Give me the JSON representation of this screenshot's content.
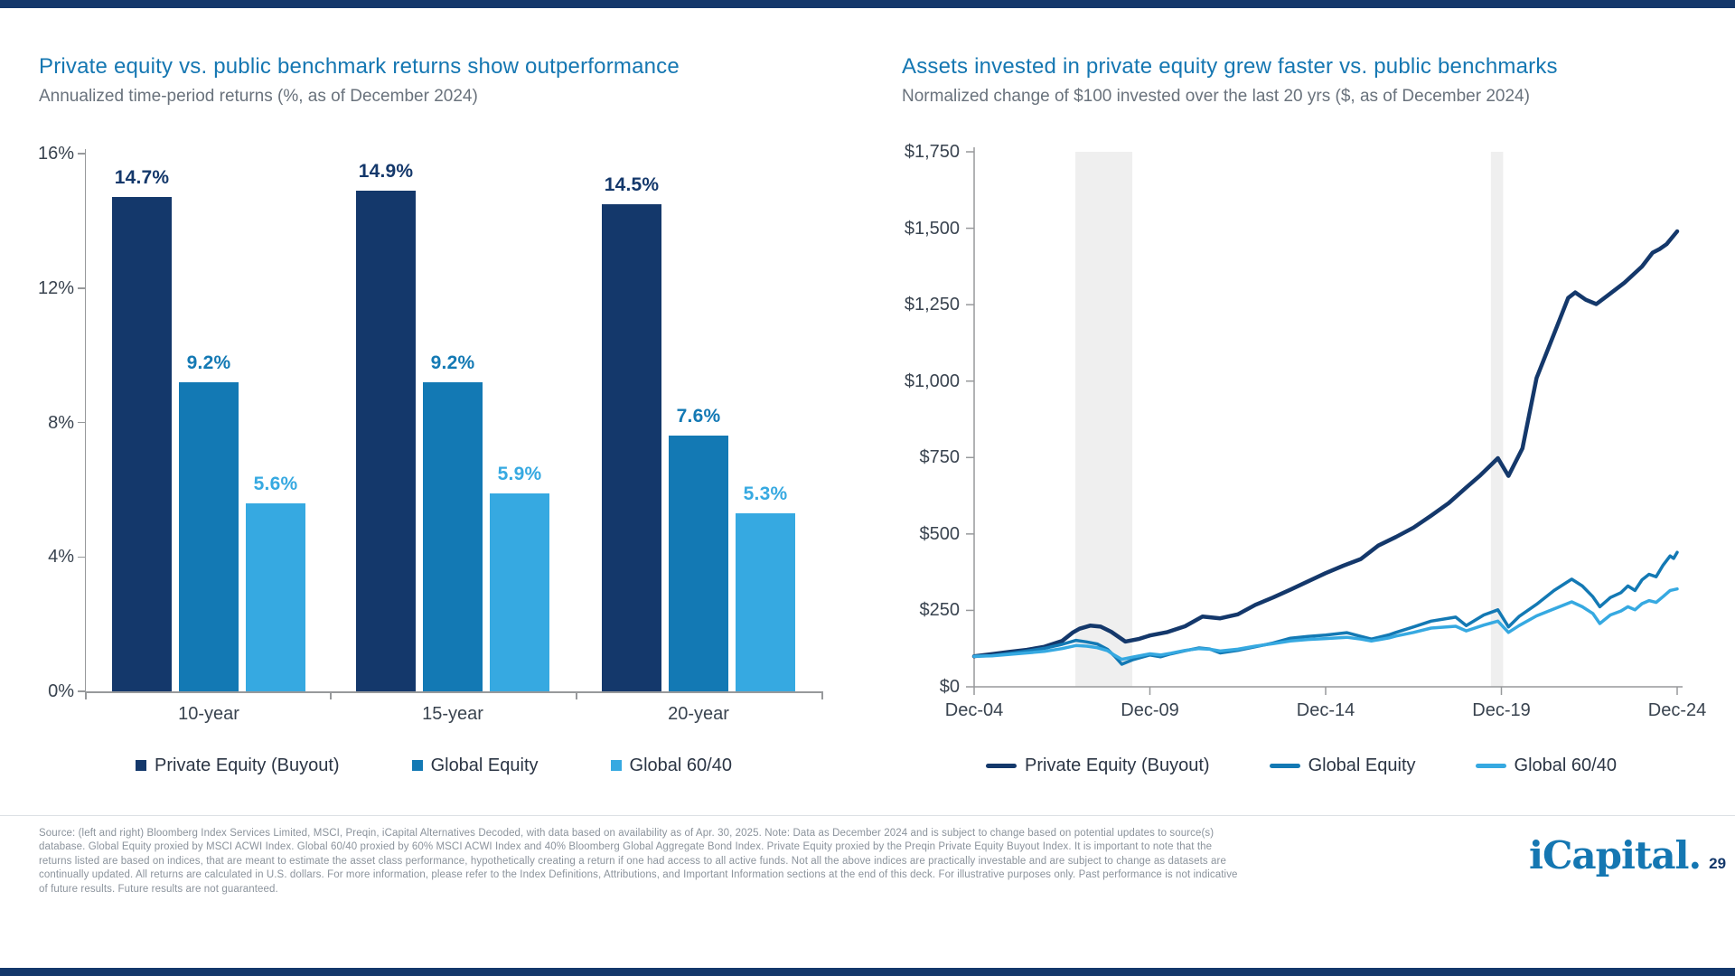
{
  "brand": {
    "navy": "#14386B",
    "blue": "#1577B2",
    "light_blue": "#36A9E1",
    "axis_text": "#39434F",
    "subtitle_gray": "#69727C",
    "footnote_gray": "#8B939C",
    "band_gray": "#EFEFEF"
  },
  "chart_data": [
    {
      "type": "bar",
      "title": "Private equity vs. public benchmark returns show outperformance",
      "subtitle": "Annualized time-period returns (%, as of December 2024)",
      "categories": [
        "10-year",
        "15-year",
        "20-year"
      ],
      "series": [
        {
          "name": "Private Equity (Buyout)",
          "color": "#14386B",
          "values": [
            14.7,
            14.9,
            14.5
          ]
        },
        {
          "name": "Global Equity",
          "color": "#1379B4",
          "values": [
            9.2,
            9.2,
            7.6
          ]
        },
        {
          "name": "Global 60/40",
          "color": "#36A9E1",
          "values": [
            5.6,
            5.9,
            5.3
          ]
        }
      ],
      "value_label_suffix": "%",
      "ylim": [
        0,
        16
      ],
      "y_ticks": [
        "0%",
        "4%",
        "8%",
        "12%",
        "16%"
      ],
      "grid": false,
      "legend_position": "bottom"
    },
    {
      "type": "line",
      "title": "Assets invested in private equity grew faster vs. public benchmarks",
      "subtitle": "Normalized change of $100 invested over the last 20 yrs ($, as of December 2024)",
      "x_ticks": [
        "Dec-04",
        "Dec-09",
        "Dec-14",
        "Dec-19",
        "Dec-24"
      ],
      "x_range_years": [
        0,
        20
      ],
      "ylim": [
        0,
        1750
      ],
      "y_ticks": [
        "$0",
        "$250",
        "$500",
        "$750",
        "$1,000",
        "$1,250",
        "$1,500",
        "$1,750"
      ],
      "grid": false,
      "legend_position": "bottom",
      "shaded_bands": [
        {
          "name": "2008-09 recession",
          "x_years": [
            2.88,
            4.5
          ]
        },
        {
          "name": "2020 recession",
          "x_years": [
            14.7,
            15.05
          ]
        }
      ],
      "series": [
        {
          "name": "Private Equity (Buyout)",
          "color": "#14386B",
          "points": [
            [
              0,
              100
            ],
            [
              0.5,
              107
            ],
            [
              1,
              114
            ],
            [
              1.5,
              121
            ],
            [
              2,
              131
            ],
            [
              2.5,
              150
            ],
            [
              2.8,
              177
            ],
            [
              3,
              190
            ],
            [
              3.3,
              200
            ],
            [
              3.6,
              197
            ],
            [
              3.9,
              180
            ],
            [
              4.3,
              148
            ],
            [
              4.7,
              157
            ],
            [
              5,
              168
            ],
            [
              5.5,
              179
            ],
            [
              6,
              198
            ],
            [
              6.5,
              230
            ],
            [
              7,
              224
            ],
            [
              7.5,
              237
            ],
            [
              8,
              268
            ],
            [
              8.5,
              292
            ],
            [
              9,
              318
            ],
            [
              9.5,
              345
            ],
            [
              10,
              372
            ],
            [
              10.5,
              396
            ],
            [
              11,
              418
            ],
            [
              11.5,
              462
            ],
            [
              12,
              490
            ],
            [
              12.5,
              521
            ],
            [
              13,
              560
            ],
            [
              13.5,
              601
            ],
            [
              14,
              652
            ],
            [
              14.4,
              692
            ],
            [
              14.9,
              748
            ],
            [
              15.2,
              690
            ],
            [
              15.6,
              780
            ],
            [
              16,
              1010
            ],
            [
              16.5,
              1155
            ],
            [
              16.9,
              1272
            ],
            [
              17.1,
              1290
            ],
            [
              17.4,
              1266
            ],
            [
              17.7,
              1252
            ],
            [
              18,
              1278
            ],
            [
              18.5,
              1322
            ],
            [
              19,
              1375
            ],
            [
              19.3,
              1420
            ],
            [
              19.5,
              1432
            ],
            [
              19.7,
              1448
            ],
            [
              20,
              1490
            ]
          ]
        },
        {
          "name": "Global Equity",
          "color": "#1379B4",
          "points": [
            [
              0,
              100
            ],
            [
              0.5,
              102
            ],
            [
              1,
              109
            ],
            [
              1.5,
              117
            ],
            [
              2,
              126
            ],
            [
              2.5,
              139
            ],
            [
              2.9,
              152
            ],
            [
              3.2,
              147
            ],
            [
              3.5,
              140
            ],
            [
              3.8,
              122
            ],
            [
              4,
              100
            ],
            [
              4.2,
              74
            ],
            [
              4.5,
              88
            ],
            [
              5,
              104
            ],
            [
              5.3,
              98
            ],
            [
              5.6,
              108
            ],
            [
              6,
              118
            ],
            [
              6.4,
              127
            ],
            [
              6.7,
              124
            ],
            [
              7,
              111
            ],
            [
              7.5,
              119
            ],
            [
              8,
              131
            ],
            [
              8.5,
              143
            ],
            [
              9,
              159
            ],
            [
              9.5,
              165
            ],
            [
              10,
              169
            ],
            [
              10.6,
              177
            ],
            [
              11,
              165
            ],
            [
              11.3,
              156
            ],
            [
              11.8,
              170
            ],
            [
              12,
              178
            ],
            [
              12.5,
              196
            ],
            [
              13,
              215
            ],
            [
              13.7,
              228
            ],
            [
              14,
              200
            ],
            [
              14.5,
              235
            ],
            [
              14.9,
              252
            ],
            [
              15.2,
              196
            ],
            [
              15.5,
              230
            ],
            [
              16,
              270
            ],
            [
              16.5,
              315
            ],
            [
              17,
              352
            ],
            [
              17.3,
              330
            ],
            [
              17.6,
              295
            ],
            [
              17.8,
              262
            ],
            [
              18.1,
              292
            ],
            [
              18.4,
              308
            ],
            [
              18.6,
              330
            ],
            [
              18.8,
              315
            ],
            [
              19,
              350
            ],
            [
              19.2,
              368
            ],
            [
              19.4,
              360
            ],
            [
              19.6,
              398
            ],
            [
              19.8,
              428
            ],
            [
              19.9,
              420
            ],
            [
              20,
              440
            ]
          ]
        },
        {
          "name": "Global 60/40",
          "color": "#36A9E1",
          "points": [
            [
              0,
              100
            ],
            [
              0.5,
              101
            ],
            [
              1,
              106
            ],
            [
              1.5,
              111
            ],
            [
              2,
              116
            ],
            [
              2.5,
              125
            ],
            [
              2.9,
              135
            ],
            [
              3.2,
              133
            ],
            [
              3.5,
              128
            ],
            [
              3.8,
              118
            ],
            [
              4,
              103
            ],
            [
              4.2,
              90
            ],
            [
              4.5,
              97
            ],
            [
              5,
              108
            ],
            [
              5.3,
              104
            ],
            [
              5.6,
              110
            ],
            [
              6,
              119
            ],
            [
              6.4,
              125
            ],
            [
              6.7,
              123
            ],
            [
              7,
              117
            ],
            [
              7.5,
              123
            ],
            [
              8,
              133
            ],
            [
              8.5,
              141
            ],
            [
              9,
              150
            ],
            [
              9.5,
              155
            ],
            [
              10,
              158
            ],
            [
              10.6,
              162
            ],
            [
              11,
              156
            ],
            [
              11.3,
              150
            ],
            [
              11.8,
              160
            ],
            [
              12,
              166
            ],
            [
              12.5,
              178
            ],
            [
              13,
              192
            ],
            [
              13.7,
              198
            ],
            [
              14,
              183
            ],
            [
              14.5,
              202
            ],
            [
              14.9,
              215
            ],
            [
              15.2,
              178
            ],
            [
              15.5,
              200
            ],
            [
              16,
              232
            ],
            [
              16.5,
              255
            ],
            [
              17,
              278
            ],
            [
              17.3,
              262
            ],
            [
              17.6,
              240
            ],
            [
              17.8,
              207
            ],
            [
              18.1,
              235
            ],
            [
              18.4,
              248
            ],
            [
              18.6,
              262
            ],
            [
              18.8,
              252
            ],
            [
              19,
              272
            ],
            [
              19.2,
              282
            ],
            [
              19.4,
              276
            ],
            [
              19.6,
              295
            ],
            [
              19.8,
              315
            ],
            [
              20,
              320
            ]
          ]
        }
      ]
    }
  ],
  "footer": {
    "source_text": "Source: (left and right) Bloomberg Index Services Limited, MSCI, Preqin, iCapital Alternatives Decoded, with data based on availability as of Apr. 30, 2025. Note: Data as December 2024 and is subject to change based on potential updates to source(s) database. Global Equity proxied by MSCI ACWI Index. Global 60/40 proxied by 60% MSCI ACWI Index and 40% Bloomberg Global Aggregate Bond Index. Private Equity proxied by the Preqin Private Equity Buyout Index. It is important to note that the returns listed are based on indices, that are meant to estimate the asset class performance, hypothetically creating a return if one had access to all active funds. Not all the above indices are practically investable and are subject to change as datasets are continually updated. All returns are calculated in U.S. dollars. For more information, please refer to the Index Definitions, Attributions, and Important Information sections at the end of this deck. For illustrative purposes only. Past performance is not indicative of future results. Future results are not guaranteed.",
    "logo_text": "iCapital.",
    "page_number": "29"
  }
}
